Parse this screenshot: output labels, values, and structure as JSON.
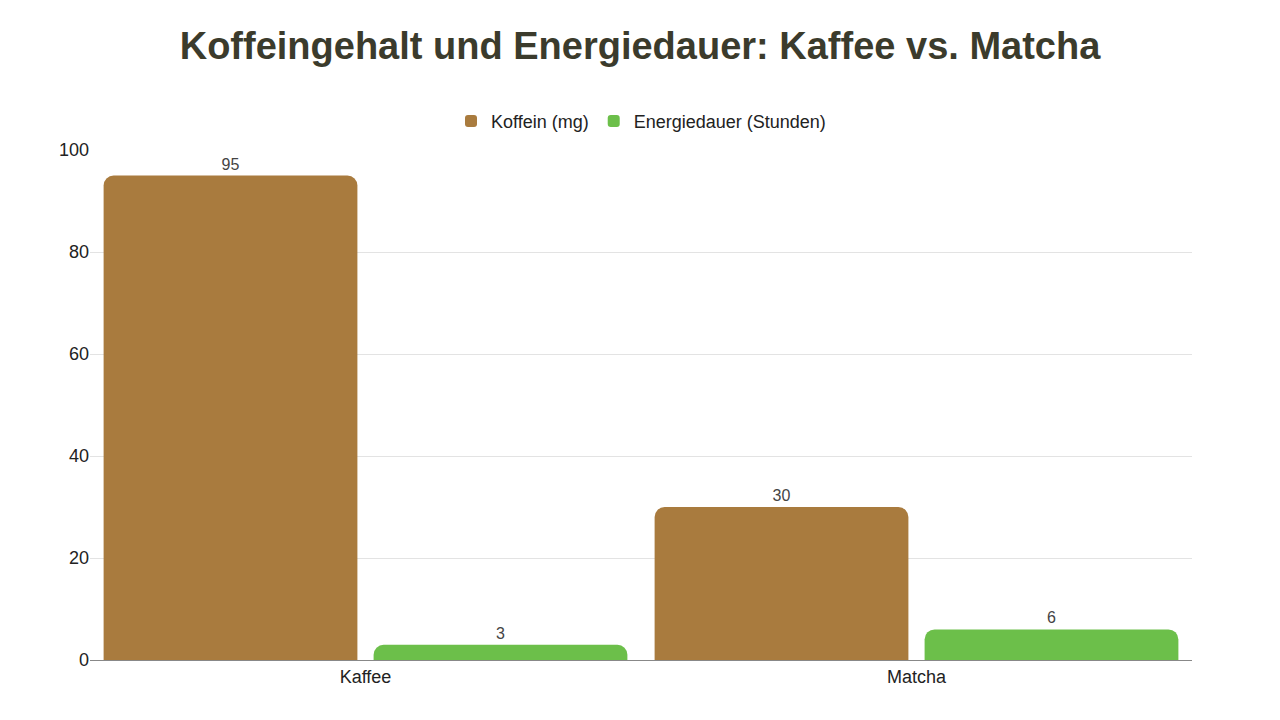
{
  "chart_data": {
    "type": "bar",
    "title": "Koffeingehalt und Energiedauer: Kaffee vs. Matcha",
    "categories": [
      "Kaffee",
      "Matcha"
    ],
    "series": [
      {
        "name": "Koffein (mg)",
        "color": "#a97b3e",
        "values": [
          95,
          30
        ]
      },
      {
        "name": "Energiedauer (Stunden)",
        "color": "#6cbf4a",
        "values": [
          3,
          6
        ]
      }
    ],
    "ylim": [
      0,
      100
    ],
    "yticks": [
      0,
      20,
      40,
      60,
      80,
      100
    ],
    "grid": true,
    "legend": "top",
    "data_labels": true
  }
}
